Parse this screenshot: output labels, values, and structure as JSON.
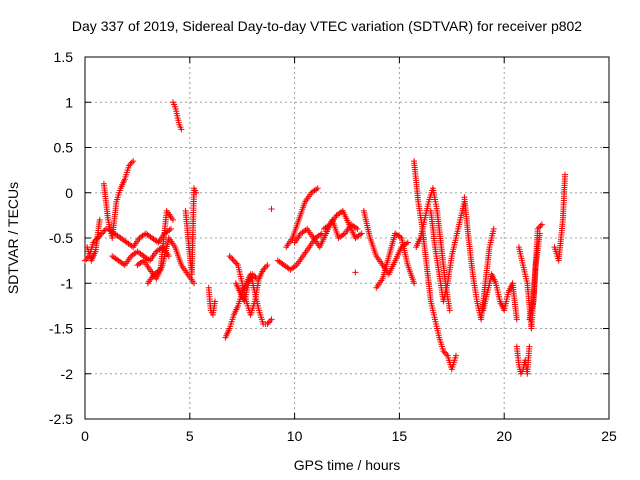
{
  "chart_data": {
    "type": "scatter",
    "title": "Day 337 of 2019, Sidereal Day-to-day VTEC variation (SDTVAR) for receiver p802",
    "xlabel": "GPS time / hours",
    "ylabel": "SDTVAR / TECUs",
    "xlim": [
      0,
      25
    ],
    "ylim": [
      -2.5,
      1.5
    ],
    "xticks": [
      0,
      5,
      10,
      15,
      20,
      25
    ],
    "yticks": [
      -2.5,
      -2,
      -1.5,
      -1,
      -0.5,
      0,
      0.5,
      1,
      1.5
    ],
    "xtick_labels": [
      "0",
      "5",
      "10",
      "15",
      "20",
      "25"
    ],
    "ytick_labels": [
      "-2.5",
      "-2",
      "-1.5",
      "-1",
      "-0.5",
      "0",
      "0.5",
      "1",
      "1.5"
    ],
    "grid": true,
    "marker": "+",
    "color": "#ff0000",
    "series": [
      {
        "name": "p802",
        "segments": [
          {
            "x": [
              0.0,
              0.2,
              0.4,
              0.6,
              0.8,
              1.0
            ],
            "y": [
              -0.75,
              -0.7,
              -0.55,
              -0.5,
              -0.45,
              -0.4
            ]
          },
          {
            "x": [
              0.1,
              0.3,
              0.5,
              0.7
            ],
            "y": [
              -0.6,
              -0.75,
              -0.65,
              -0.3
            ]
          },
          {
            "x": [
              0.9,
              1.1,
              1.3,
              1.5,
              1.7,
              1.9,
              2.1,
              2.3
            ],
            "y": [
              0.1,
              -0.3,
              -0.5,
              -0.1,
              0.05,
              0.15,
              0.3,
              0.35
            ]
          },
          {
            "x": [
              1.1,
              1.4,
              1.7,
              2.0,
              2.3,
              2.6,
              2.9,
              3.2,
              3.5,
              3.8,
              4.1
            ],
            "y": [
              -0.4,
              -0.45,
              -0.5,
              -0.55,
              -0.6,
              -0.5,
              -0.45,
              -0.5,
              -0.55,
              -0.45,
              -0.4
            ]
          },
          {
            "x": [
              1.3,
              1.6,
              1.9,
              2.2,
              2.5,
              2.8,
              3.1,
              3.4,
              3.7,
              4.0
            ],
            "y": [
              -0.7,
              -0.75,
              -0.8,
              -0.7,
              -0.65,
              -0.7,
              -0.75,
              -0.65,
              -0.6,
              -0.7
            ]
          },
          {
            "x": [
              2.5,
              2.8,
              3.1,
              3.4,
              3.7,
              4.0,
              4.3,
              4.6,
              4.9,
              5.2
            ],
            "y": [
              -0.8,
              -0.75,
              -0.85,
              -0.95,
              -0.8,
              -0.5,
              -0.6,
              -0.8,
              -0.9,
              -1.0
            ]
          },
          {
            "x": [
              3.0,
              3.3,
              3.6,
              3.9,
              4.2
            ],
            "y": [
              -1.0,
              -0.9,
              -0.85,
              -0.2,
              -0.3
            ]
          },
          {
            "x": [
              4.2,
              4.3,
              4.4,
              4.5,
              4.6
            ],
            "y": [
              1.0,
              0.95,
              0.85,
              0.75,
              0.7
            ]
          },
          {
            "x": [
              4.8,
              5.0,
              5.1,
              5.2,
              5.3
            ],
            "y": [
              -0.2,
              -0.7,
              -0.9,
              0.05,
              0.0
            ]
          },
          {
            "x": [
              5.9,
              6.0,
              6.1,
              6.2
            ],
            "y": [
              -1.05,
              -1.3,
              -1.35,
              -1.2
            ]
          },
          {
            "x": [
              6.7,
              6.9,
              7.1,
              7.3,
              7.5,
              7.7,
              7.9,
              8.1,
              8.3,
              8.5,
              8.7,
              8.9
            ],
            "y": [
              -1.6,
              -1.5,
              -1.35,
              -1.25,
              -1.1,
              -1.0,
              -0.9,
              -1.1,
              -1.3,
              -1.45,
              -1.45,
              -1.4
            ]
          },
          {
            "x": [
              6.9,
              7.1,
              7.3,
              7.5,
              7.7,
              7.9,
              8.1,
              8.3,
              8.5,
              8.7
            ],
            "y": [
              -0.7,
              -0.75,
              -0.8,
              -1.0,
              -1.2,
              -1.35,
              -1.2,
              -0.95,
              -0.85,
              -0.8
            ]
          },
          {
            "x": [
              7.2,
              7.4,
              7.6,
              7.8,
              8.0,
              8.2
            ],
            "y": [
              -1.0,
              -1.1,
              -1.2,
              -1.0,
              -0.9,
              -0.95
            ]
          },
          {
            "x": [
              8.9
            ],
            "y": [
              -0.18
            ]
          },
          {
            "x": [
              9.2,
              9.5,
              9.8,
              10.1,
              10.4,
              10.7,
              11.0,
              11.3
            ],
            "y": [
              -0.75,
              -0.8,
              -0.85,
              -0.8,
              -0.7,
              -0.6,
              -0.5,
              -0.45
            ]
          },
          {
            "x": [
              9.6,
              9.9,
              10.2,
              10.5,
              10.8,
              11.1
            ],
            "y": [
              -0.6,
              -0.5,
              -0.3,
              -0.1,
              0.0,
              0.05
            ]
          },
          {
            "x": [
              10.0,
              10.3,
              10.6,
              10.9,
              11.2,
              11.5,
              11.8,
              12.1,
              12.4,
              12.7,
              13.0
            ],
            "y": [
              -0.55,
              -0.45,
              -0.4,
              -0.5,
              -0.6,
              -0.45,
              -0.3,
              -0.5,
              -0.45,
              -0.35,
              -0.4
            ]
          },
          {
            "x": [
              11.4,
              11.7,
              12.0,
              12.3,
              12.6,
              12.9,
              13.2
            ],
            "y": [
              -0.4,
              -0.35,
              -0.25,
              -0.2,
              -0.35,
              -0.5,
              -0.45
            ]
          },
          {
            "x": [
              12.9
            ],
            "y": [
              -0.88
            ]
          },
          {
            "x": [
              13.3,
              13.6,
              13.9,
              14.2,
              14.5,
              14.8,
              15.1,
              15.4
            ],
            "y": [
              -0.2,
              -0.5,
              -0.7,
              -0.8,
              -0.9,
              -0.75,
              -0.6,
              -0.55
            ]
          },
          {
            "x": [
              13.9,
              14.2,
              14.5,
              14.8,
              15.1,
              15.4,
              15.7
            ],
            "y": [
              -1.05,
              -0.95,
              -0.7,
              -0.45,
              -0.5,
              -0.8,
              -1.0
            ]
          },
          {
            "x": [
              15.7,
              15.9,
              16.1,
              16.3,
              16.5,
              16.7,
              16.9,
              17.1,
              17.3,
              17.5,
              17.7
            ],
            "y": [
              0.35,
              -0.1,
              -0.4,
              -0.8,
              -1.2,
              -1.4,
              -1.6,
              -1.75,
              -1.8,
              -1.95,
              -1.8
            ]
          },
          {
            "x": [
              15.8,
              16.0,
              16.2,
              16.4,
              16.6,
              16.8,
              17.0,
              17.2,
              17.4
            ],
            "y": [
              -0.6,
              -0.5,
              -0.3,
              -0.1,
              0.05,
              -0.2,
              -0.6,
              -1.0,
              -1.3
            ]
          },
          {
            "x": [
              16.5,
              16.7,
              16.9,
              17.1,
              17.3,
              17.5,
              17.7,
              17.9,
              18.1
            ],
            "y": [
              -0.2,
              -0.6,
              -0.9,
              -1.2,
              -1.0,
              -0.7,
              -0.5,
              -0.3,
              -0.1
            ]
          },
          {
            "x": [
              18.1,
              18.3,
              18.5,
              18.7,
              18.9,
              19.1,
              19.3,
              19.5
            ],
            "y": [
              -0.05,
              -0.5,
              -0.9,
              -1.2,
              -1.4,
              -1.0,
              -0.6,
              -0.4
            ]
          },
          {
            "x": [
              19.0,
              19.2,
              19.4,
              19.6,
              19.8,
              20.0,
              20.2,
              20.4,
              20.6
            ],
            "y": [
              -1.3,
              -1.1,
              -0.9,
              -1.0,
              -1.2,
              -1.3,
              -1.1,
              -1.0,
              -1.4
            ]
          },
          {
            "x": [
              20.6,
              20.7,
              20.8,
              20.9,
              21.0,
              21.1,
              21.2
            ],
            "y": [
              -1.7,
              -1.9,
              -2.0,
              -1.95,
              -1.85,
              -2.0,
              -1.7
            ]
          },
          {
            "x": [
              20.7,
              20.9,
              21.1,
              21.3,
              21.5,
              21.7
            ],
            "y": [
              -0.6,
              -0.8,
              -1.0,
              -1.5,
              -0.8,
              -0.45
            ]
          },
          {
            "x": [
              21.2,
              21.4,
              21.6,
              21.8
            ],
            "y": [
              -1.4,
              -1.2,
              -0.4,
              -0.35
            ]
          },
          {
            "x": [
              22.4,
              22.6,
              22.8,
              22.9
            ],
            "y": [
              -0.6,
              -0.75,
              -0.3,
              0.2
            ]
          }
        ]
      }
    ]
  }
}
